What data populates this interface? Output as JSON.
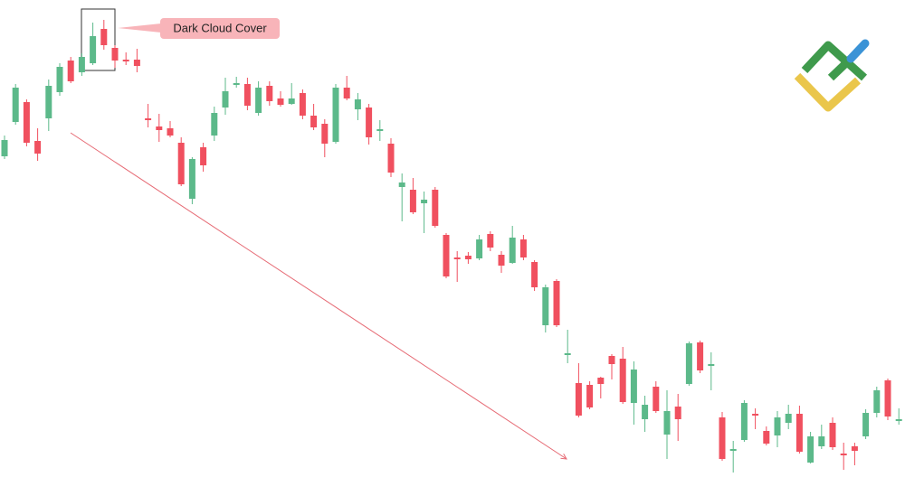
{
  "chart_data": {
    "type": "candlestick",
    "annotation": "Dark Cloud Cover",
    "up_color": "#5cb98a",
    "down_color": "#f0505f",
    "ylim": [
      0,
      549
    ],
    "open": [
      376,
      414,
      436,
      393,
      418,
      447,
      482,
      469,
      479,
      517,
      496,
      483,
      483,
      418,
      409,
      407,
      391,
      329,
      386,
      399,
      430,
      455,
      456,
      424,
      454,
      440,
      434,
      446,
      421,
      412,
      392,
      452,
      428,
      430,
      404,
      390,
      342,
      339,
      324,
      339,
      289,
      264,
      266,
      263,
      290,
      267,
      258,
      284,
      259,
      189,
      238,
      156,
      125,
      123,
      131,
      155,
      152,
      103,
      85,
      121,
      68,
      99,
      124,
      170,
      145,
      87,
      51,
      62,
      91,
      72,
      67,
      81,
      91,
      37,
      55,
      81,
      47,
      55,
      66,
      92,
      128,
      83
    ],
    "high": [
      399,
      456,
      439,
      407,
      461,
      479,
      486,
      490,
      524,
      527,
      499,
      491,
      495,
      434,
      423,
      415,
      397,
      375,
      391,
      431,
      463,
      464,
      463,
      459,
      459,
      448,
      457,
      450,
      434,
      417,
      456,
      465,
      446,
      434,
      416,
      396,
      357,
      352,
      337,
      342,
      291,
      271,
      270,
      289,
      293,
      271,
      299,
      289,
      261,
      234,
      240,
      184,
      147,
      127,
      132,
      157,
      165,
      149,
      111,
      127,
      117,
      113,
      171,
      172,
      159,
      93,
      61,
      106,
      97,
      77,
      94,
      101,
      100,
      71,
      79,
      87,
      59,
      59,
      96,
      121,
      130,
      97
    ],
    "low": [
      373,
      411,
      387,
      371,
      404,
      443,
      457,
      465,
      477,
      494,
      474,
      477,
      469,
      408,
      392,
      397,
      343,
      323,
      359,
      393,
      422,
      452,
      427,
      421,
      432,
      431,
      433,
      417,
      405,
      375,
      390,
      438,
      416,
      389,
      393,
      353,
      304,
      312,
      291,
      297,
      241,
      237,
      257,
      261,
      271,
      247,
      257,
      261,
      227,
      181,
      187,
      147,
      87,
      96,
      108,
      129,
      102,
      79,
      71,
      92,
      41,
      61,
      122,
      136,
      117,
      39,
      26,
      60,
      74,
      56,
      54,
      74,
      47,
      36,
      52,
      51,
      29,
      34,
      63,
      87,
      84,
      79
    ],
    "close": [
      394,
      452,
      391,
      379,
      454,
      475,
      459,
      486,
      509,
      499,
      482,
      481,
      476,
      417,
      405,
      399,
      345,
      373,
      366,
      424,
      448,
      457,
      432,
      452,
      437,
      433,
      440,
      421,
      408,
      390,
      452,
      440,
      439,
      397,
      406,
      358,
      347,
      314,
      328,
      299,
      243,
      263,
      262,
      284,
      275,
      255,
      286,
      264,
      231,
      231,
      189,
      158,
      89,
      98,
      124,
      146,
      104,
      140,
      101,
      94,
      94,
      85,
      169,
      139,
      146,
      41,
      52,
      103,
      89,
      58,
      87,
      91,
      49,
      66,
      66,
      54,
      45,
      50,
      92,
      117,
      88,
      85
    ]
  }
}
